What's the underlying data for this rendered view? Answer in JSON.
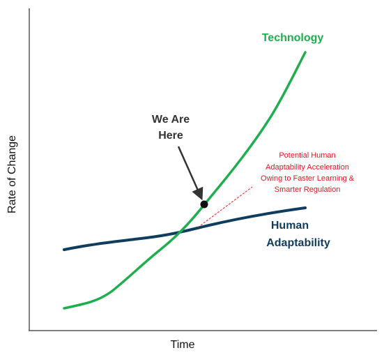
{
  "axes": {
    "x_label": "Time",
    "y_label": "Rate of Change"
  },
  "curves": [
    {
      "label": "Technology"
    },
    {
      "label_lines": [
        "Human",
        "Adaptability"
      ]
    }
  ],
  "marker": {
    "label_lines": [
      "We Are",
      "Here"
    ]
  },
  "annotation": {
    "lines": [
      "Potential Human",
      "Adaptability Acceleration",
      "Owing to Faster Learning &",
      "Smarter Regulation"
    ]
  }
}
